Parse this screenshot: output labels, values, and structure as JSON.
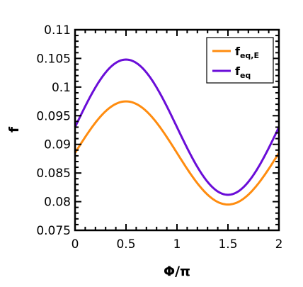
{
  "chart_data": {
    "type": "line",
    "xlabel": "Φ/π",
    "ylabel": "f",
    "xlim": [
      0,
      2
    ],
    "ylim": [
      0.075,
      0.11
    ],
    "x_ticks": [
      0,
      0.5,
      1,
      1.5,
      2
    ],
    "x_tick_labels": [
      "0",
      "0.5",
      "1",
      "1.5",
      "2"
    ],
    "y_ticks": [
      0.075,
      0.08,
      0.085,
      0.09,
      0.095,
      0.1,
      0.105,
      0.11
    ],
    "y_tick_labels": [
      "0.075",
      "0.08",
      "0.085",
      "0.09",
      "0.095",
      "0.1",
      "0.105",
      "0.11"
    ],
    "grid": false,
    "legend_position": "top-right",
    "x": [
      0,
      0.1,
      0.2,
      0.3,
      0.4,
      0.5,
      0.6,
      0.7,
      0.8,
      0.9,
      1.0,
      1.1,
      1.2,
      1.3,
      1.4,
      1.5,
      1.6,
      1.7,
      1.8,
      1.9,
      2.0
    ],
    "series": [
      {
        "name_main": "f",
        "name_sub": "eq,E",
        "color": "#FF8C0F",
        "values": [
          0.0885,
          0.0912,
          0.0937,
          0.0957,
          0.0971,
          0.0975,
          0.0971,
          0.0957,
          0.0937,
          0.0912,
          0.0885,
          0.0858,
          0.0833,
          0.0813,
          0.0799,
          0.0795,
          0.0799,
          0.0813,
          0.0833,
          0.0858,
          0.0885
        ]
      },
      {
        "name_main": "f",
        "name_sub": "eq",
        "color": "#6A0DD8",
        "values": [
          0.093,
          0.0966,
          0.0999,
          0.1025,
          0.1042,
          0.1048,
          0.1042,
          0.1025,
          0.0999,
          0.0966,
          0.093,
          0.0894,
          0.0861,
          0.0835,
          0.0818,
          0.0812,
          0.0818,
          0.0835,
          0.0861,
          0.0894,
          0.093
        ]
      }
    ]
  }
}
